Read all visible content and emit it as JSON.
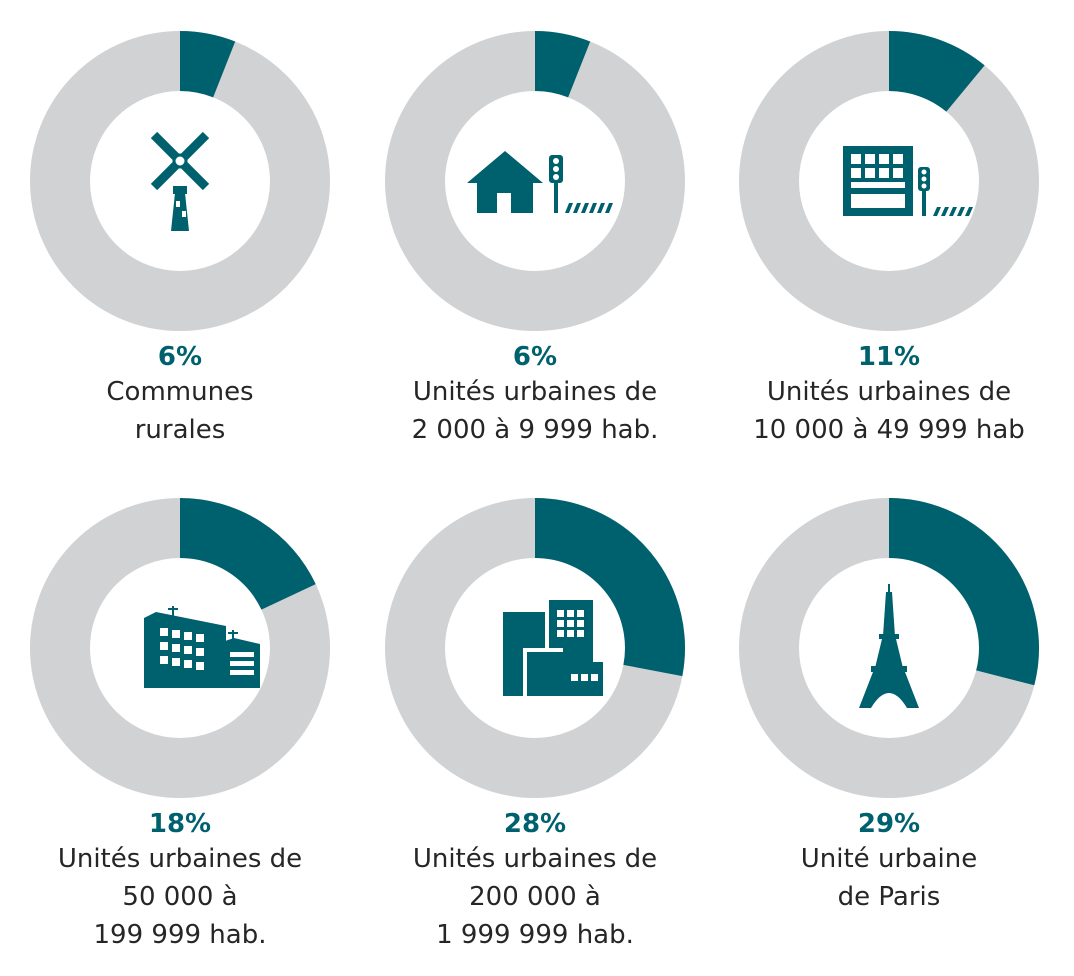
{
  "colors": {
    "accent": "#00616e",
    "ring": "#d1d2d4",
    "text": "#262626"
  },
  "chart_data": [
    {
      "type": "pie",
      "subtype": "donut",
      "value": 6,
      "percent_label": "6%",
      "label_lines": [
        "Communes",
        "rurales"
      ],
      "icon": "windmill-icon"
    },
    {
      "type": "pie",
      "subtype": "donut",
      "value": 6,
      "percent_label": "6%",
      "label_lines": [
        "Unités urbaines de",
        "2 000 à 9 999 hab."
      ],
      "icon": "house-traffic-light-icon"
    },
    {
      "type": "pie",
      "subtype": "donut",
      "value": 11,
      "percent_label": "11%",
      "label_lines": [
        "Unités urbaines de",
        "10 000 à 49 999 hab"
      ],
      "icon": "building-traffic-light-icon"
    },
    {
      "type": "pie",
      "subtype": "donut",
      "value": 18,
      "percent_label": "18%",
      "label_lines": [
        "Unités urbaines de",
        "50 000 à",
        "199 999 hab."
      ],
      "icon": "office-buildings-icon"
    },
    {
      "type": "pie",
      "subtype": "donut",
      "value": 28,
      "percent_label": "28%",
      "label_lines": [
        "Unités urbaines de",
        "200 000 à",
        "1 999 999 hab."
      ],
      "icon": "city-towers-icon"
    },
    {
      "type": "pie",
      "subtype": "donut",
      "value": 29,
      "percent_label": "29%",
      "label_lines": [
        "Unité urbaine",
        "de Paris"
      ],
      "icon": "eiffel-tower-icon"
    }
  ]
}
